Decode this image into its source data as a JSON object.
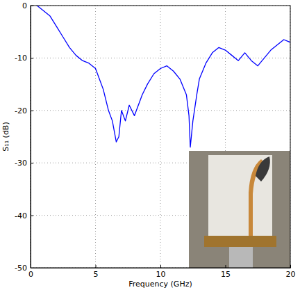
{
  "chart_data": {
    "type": "line",
    "x_label": "Frequency (GHz)",
    "y_label": "S₁₁ (dB)",
    "x": [
      0.5,
      1,
      1.5,
      2,
      2.5,
      3,
      3.5,
      4,
      4.5,
      5,
      5.3,
      5.6,
      6,
      6.3,
      6.6,
      6.8,
      7,
      7.3,
      7.6,
      8,
      8.3,
      8.6,
      9,
      9.5,
      10,
      10.5,
      11,
      11.5,
      12,
      12.2,
      12.3,
      12.5,
      12.8,
      13,
      13.5,
      14,
      14.5,
      15,
      15.5,
      16,
      16.5,
      17,
      17.5,
      18,
      18.5,
      19,
      19.5,
      20
    ],
    "values": [
      0,
      -1,
      -2,
      -4,
      -6,
      -8,
      -9.5,
      -10.5,
      -11,
      -12,
      -14,
      -16,
      -20,
      -22,
      -26,
      -25,
      -20,
      -22,
      -19,
      -21,
      -19,
      -17,
      -15,
      -13,
      -12,
      -11.5,
      -12.5,
      -14,
      -17,
      -21,
      -27,
      -22,
      -17,
      -14,
      -11,
      -9,
      -8,
      -8.5,
      -9.5,
      -10.5,
      -9,
      -10.5,
      -11.5,
      -10,
      -8.5,
      -7.5,
      -6.5,
      -7
    ],
    "color": "#0000ff",
    "xlim": [
      0,
      20
    ],
    "ylim": [
      -50,
      0
    ],
    "xticks": [
      0,
      5,
      10,
      15,
      20
    ],
    "yticks": [
      -50,
      -40,
      -30,
      -20,
      -10,
      0
    ],
    "grid": true
  }
}
